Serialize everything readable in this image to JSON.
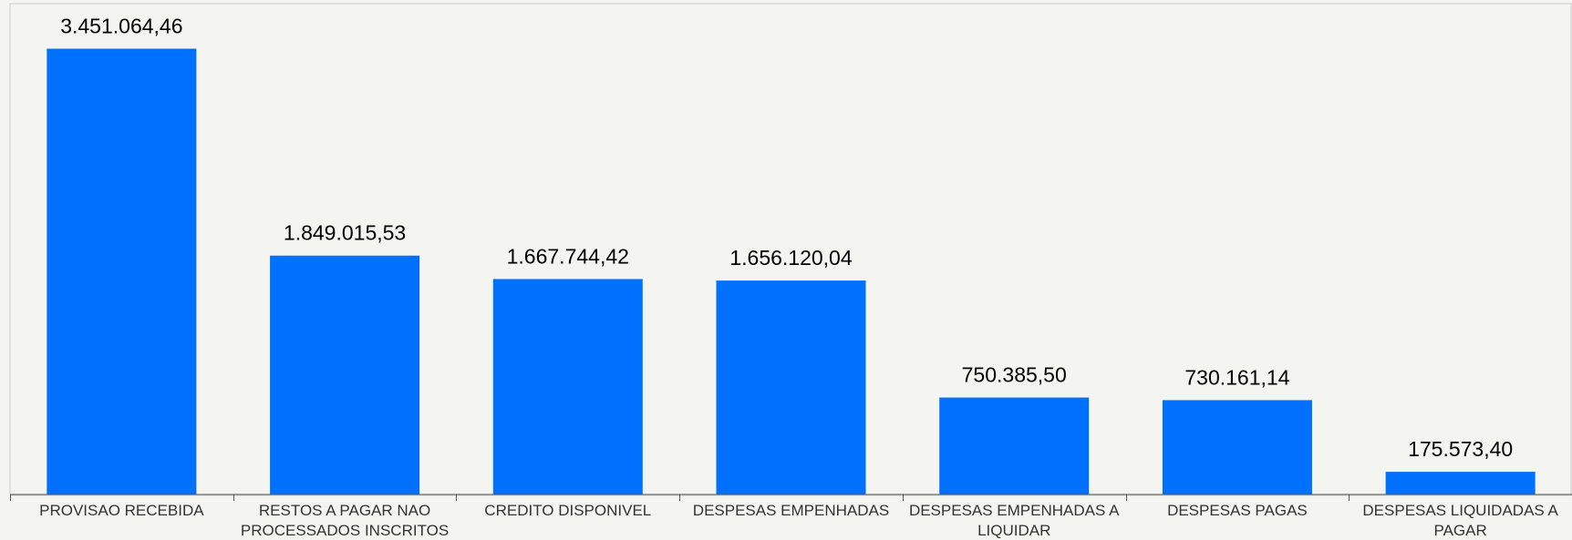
{
  "chart_data": {
    "type": "bar",
    "categories": [
      [
        "PROVISAO RECEBIDA"
      ],
      [
        "RESTOS A PAGAR NAO",
        "PROCESSADOS INSCRITOS"
      ],
      [
        "CREDITO DISPONIVEL"
      ],
      [
        "DESPESAS EMPENHADAS"
      ],
      [
        "DESPESAS EMPENHADAS A",
        "LIQUIDAR"
      ],
      [
        "DESPESAS PAGAS"
      ],
      [
        "DESPESAS LIQUIDADAS A",
        "PAGAR"
      ]
    ],
    "values": [
      3451064.46,
      1849015.53,
      1667744.42,
      1656120.04,
      750385.5,
      730161.14,
      175573.4
    ],
    "value_labels": [
      "3.451.064,46",
      "1.849.015,53",
      "1.667.744,42",
      "1.656.120,04",
      "750.385,50",
      "730.161,14",
      "175.573,40"
    ],
    "ylim": [
      0,
      3800000
    ],
    "grid": false,
    "legend": "none",
    "colors": {
      "bar": "#0070ff",
      "axis": "#555555",
      "background": "#f4f4f0"
    }
  }
}
